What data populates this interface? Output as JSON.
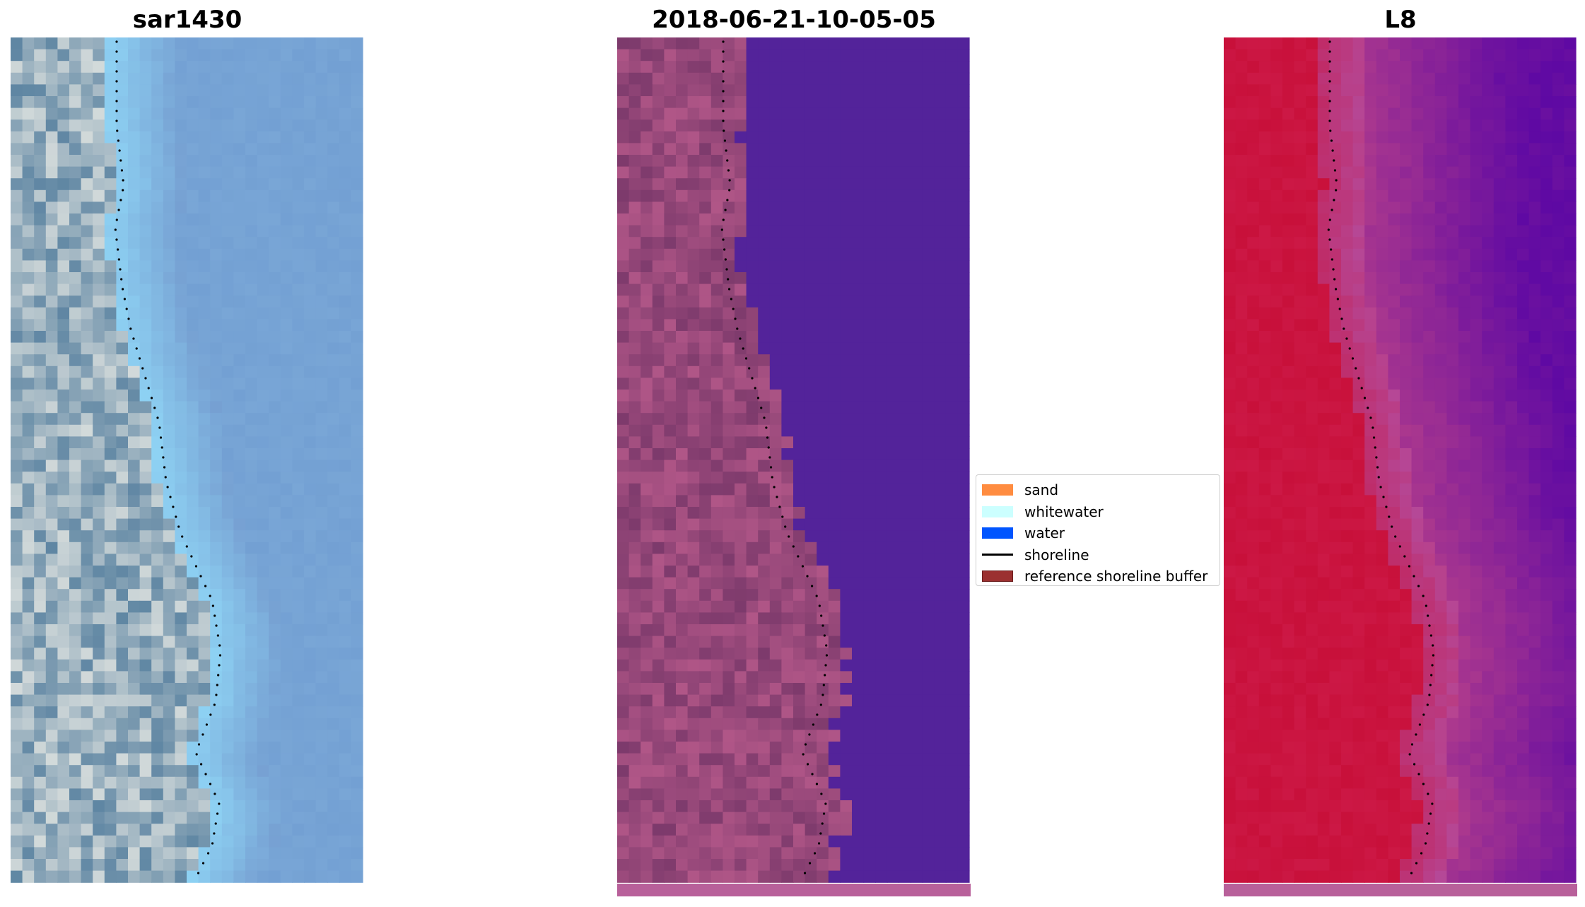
{
  "panels": [
    {
      "title": "sar1430",
      "kind": "rgb"
    },
    {
      "title": "2018-06-21-10-05-05",
      "kind": "classified"
    },
    {
      "title": "L8",
      "kind": "index"
    }
  ],
  "legend": {
    "items": [
      {
        "label": "sand",
        "color": "#ff8c40",
        "type": "patch"
      },
      {
        "label": "whitewater",
        "color": "#ccffff",
        "type": "patch"
      },
      {
        "label": "water",
        "color": "#0055ff",
        "type": "patch"
      },
      {
        "label": "shoreline",
        "color": "#000000",
        "type": "line"
      },
      {
        "label": "reference shoreline buffer",
        "color": "#9b3030",
        "type": "patch"
      }
    ]
  },
  "colors": {
    "rgb_land_light": "#dfe3e0",
    "rgb_land_dark": "#5f86a3",
    "rgb_surf": "#8fd4f5",
    "rgb_sea": "#79a6d6",
    "class_land_light": "#bd5d8e",
    "class_land_dark": "#7d3a6c",
    "class_water": "#53239a",
    "index_land": "#c8103a",
    "index_transition": "#b8408a",
    "index_water": "#6a10a0",
    "buffer_strip": "#b8609a"
  }
}
